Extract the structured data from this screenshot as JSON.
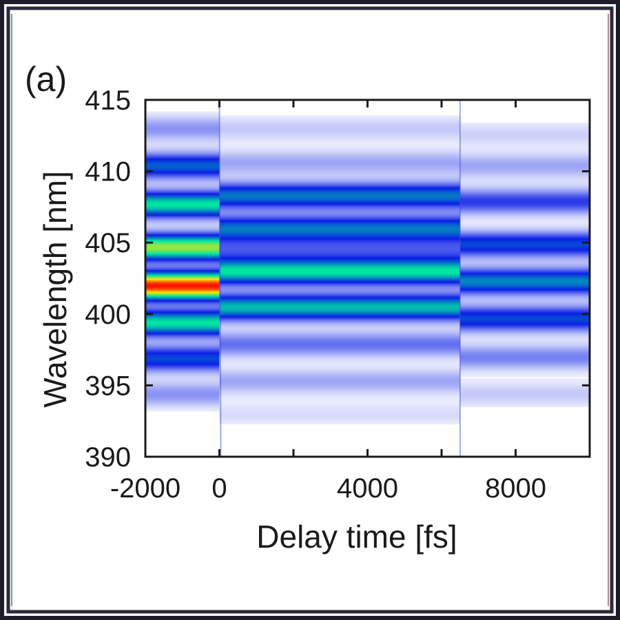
{
  "chart_data": {
    "type": "heatmap",
    "panel_label": "(a)",
    "xlabel": "Delay time [fs]",
    "ylabel": "Wavelength [nm]",
    "xlim": [
      -2000,
      10000
    ],
    "ylim": [
      390,
      415
    ],
    "x_ticks": [
      -2000,
      0,
      4000,
      8000
    ],
    "x_minor_ticks": [
      2000,
      6000
    ],
    "y_ticks": [
      390,
      395,
      400,
      405,
      410,
      415
    ],
    "colormap": [
      "#ffffff",
      "#0a1ee6",
      "#00e6a0",
      "#ffe600",
      "#ff0000"
    ],
    "regions": [
      {
        "x_range": [
          -2000,
          0
        ],
        "bands": [
          {
            "center": 413.0,
            "intensity": 0.12
          },
          {
            "center": 410.4,
            "intensity": 0.33
          },
          {
            "center": 407.7,
            "intensity": 0.5
          },
          {
            "center": 404.7,
            "intensity": 0.65
          },
          {
            "center": 402.0,
            "intensity": 0.98
          },
          {
            "center": 399.4,
            "intensity": 0.5
          },
          {
            "center": 396.9,
            "intensity": 0.3
          },
          {
            "center": 394.4,
            "intensity": 0.12
          }
        ]
      },
      {
        "x_range": [
          0,
          6500
        ],
        "bands": [
          {
            "center": 413.0,
            "intensity": 0.06
          },
          {
            "center": 410.6,
            "intensity": 0.1
          },
          {
            "center": 408.3,
            "intensity": 0.36
          },
          {
            "center": 406.0,
            "intensity": 0.36
          },
          {
            "center": 404.5,
            "intensity": 0.14
          },
          {
            "center": 403.0,
            "intensity": 0.5
          },
          {
            "center": 400.5,
            "intensity": 0.45
          },
          {
            "center": 397.9,
            "intensity": 0.16
          },
          {
            "center": 395.3,
            "intensity": 0.1
          },
          {
            "center": 393.0,
            "intensity": 0.04
          }
        ]
      },
      {
        "x_range": [
          6500,
          10000
        ],
        "bands": [
          {
            "center": 412.6,
            "intensity": 0.05
          },
          {
            "center": 410.4,
            "intensity": 0.1
          },
          {
            "center": 407.9,
            "intensity": 0.22
          },
          {
            "center": 404.9,
            "intensity": 0.3
          },
          {
            "center": 402.3,
            "intensity": 0.38
          },
          {
            "center": 399.7,
            "intensity": 0.3
          },
          {
            "center": 397.0,
            "intensity": 0.14
          },
          {
            "center": 394.4,
            "intensity": 0.06
          }
        ]
      }
    ]
  }
}
